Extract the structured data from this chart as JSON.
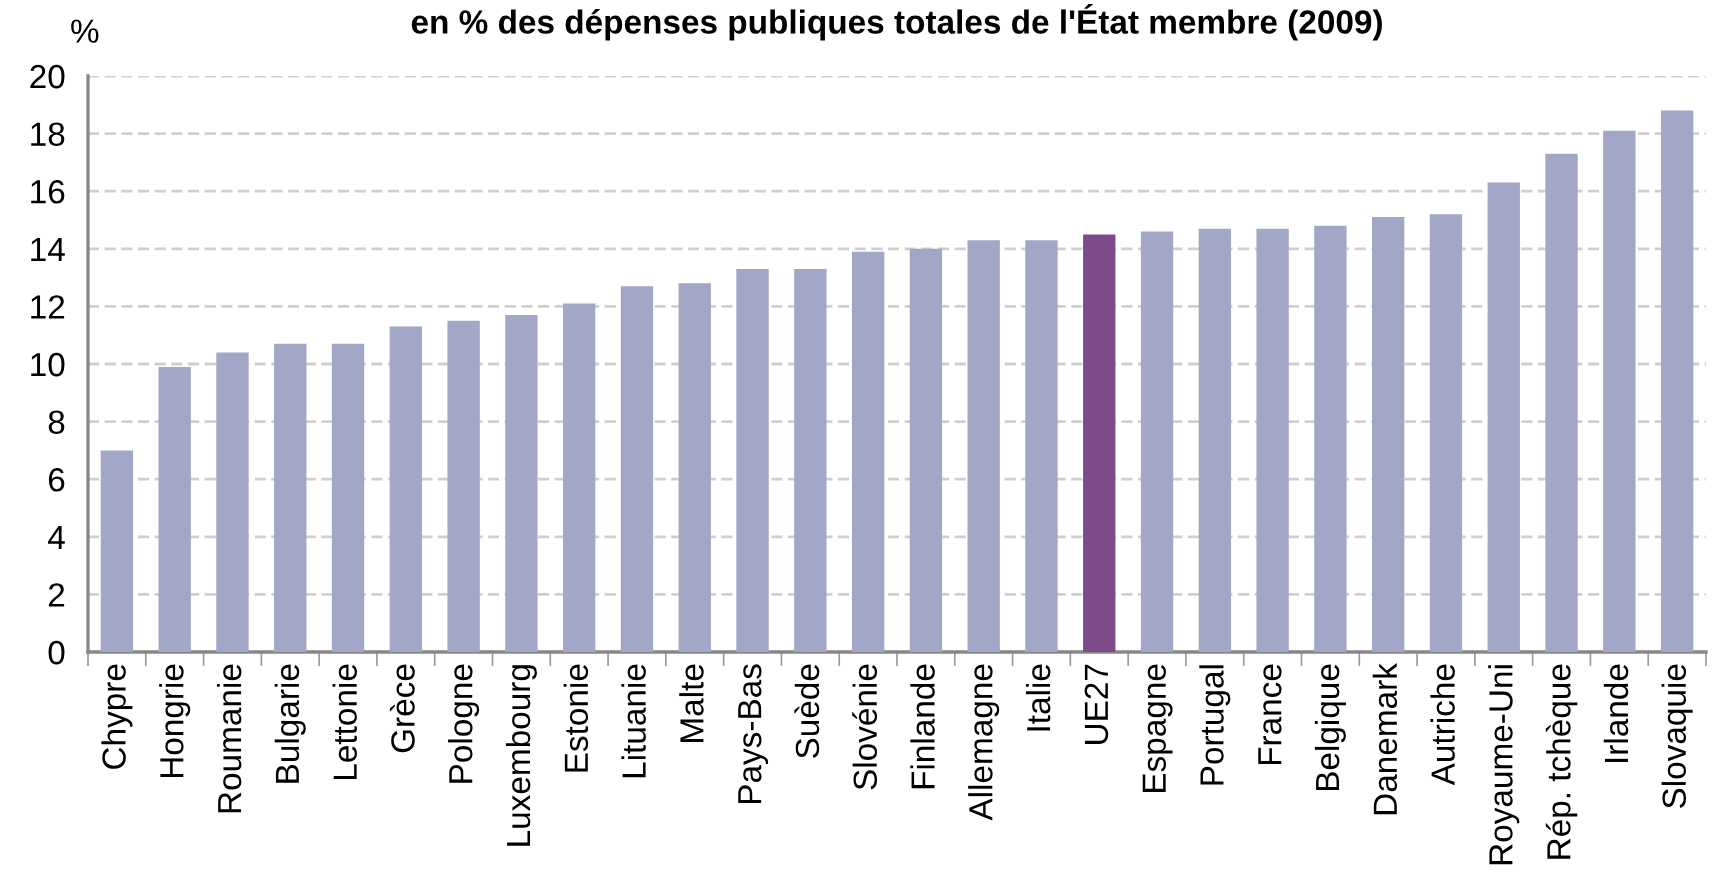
{
  "chart_data": {
    "type": "bar",
    "title": "en % des dépenses publiques totales de l'État membre (2009)",
    "ylabel": "%",
    "categories": [
      "Chypre",
      "Hongrie",
      "Roumanie",
      "Bulgarie",
      "Lettonie",
      "Grèce",
      "Pologne",
      "Luxembourg",
      "Estonie",
      "Lituanie",
      "Malte",
      "Pays-Bas",
      "Suède",
      "Slovénie",
      "Finlande",
      "Allemagne",
      "Italie",
      "UE27",
      "Espagne",
      "Portugal",
      "France",
      "Belgique",
      "Danemark",
      "Autriche",
      "Royaume-Uni",
      "Rép. tchèque",
      "Irlande",
      "Slovaquie"
    ],
    "values": [
      7.0,
      9.9,
      10.4,
      10.7,
      10.7,
      11.3,
      11.5,
      11.7,
      12.1,
      12.7,
      12.8,
      13.3,
      13.3,
      13.9,
      14.0,
      14.3,
      14.3,
      14.5,
      14.6,
      14.7,
      14.7,
      14.8,
      15.1,
      15.2,
      16.3,
      17.3,
      18.1,
      18.8
    ],
    "colors": [
      "#a2a7c8",
      "#a2a7c8",
      "#a2a7c8",
      "#a2a7c8",
      "#a2a7c8",
      "#a2a7c8",
      "#a2a7c8",
      "#a2a7c8",
      "#a2a7c8",
      "#a2a7c8",
      "#a2a7c8",
      "#a2a7c8",
      "#a2a7c8",
      "#a2a7c8",
      "#a2a7c8",
      "#a2a7c8",
      "#a2a7c8",
      "#7f4a8a",
      "#a2a7c8",
      "#a2a7c8",
      "#a2a7c8",
      "#a2a7c8",
      "#a2a7c8",
      "#a2a7c8",
      "#a2a7c8",
      "#a2a7c8",
      "#a2a7c8",
      "#a2a7c8"
    ],
    "ylim": [
      0,
      20
    ],
    "yticks": [
      0,
      2,
      4,
      6,
      8,
      10,
      12,
      14,
      16,
      18,
      20
    ],
    "grid": "y"
  }
}
